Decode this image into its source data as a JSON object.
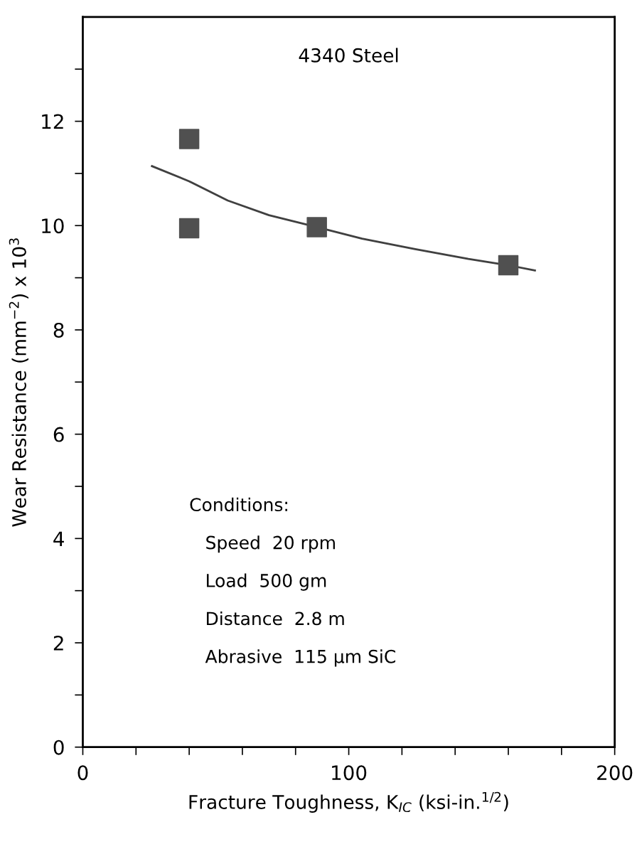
{
  "chart_data": {
    "type": "scatter",
    "title": "4340 Steel",
    "xlabel": "Fracture Toughness, K$_{IC}$ (ksi-in.$^{1/2}$)",
    "ylabel": "Wear Resistance (mm$^{−2}$) x 10$^{3}$",
    "series": [
      {
        "type": "scatter",
        "color": "#505050",
        "marker": "square",
        "x": [
          40,
          40,
          88,
          160
        ],
        "values": [
          11.66,
          9.95,
          9.97,
          9.24
        ]
      },
      {
        "type": "line",
        "color": "#404040",
        "marker": "none",
        "line_style": "solid",
        "x": [
          26,
          40,
          54.5,
          70,
          88,
          105,
          125,
          145,
          160,
          170
        ],
        "values": [
          11.14,
          10.85,
          10.48,
          10.2,
          9.97,
          9.75,
          9.55,
          9.36,
          9.24,
          9.14
        ]
      }
    ],
    "xlim": [
      0,
      200
    ],
    "xticks": [
      0,
      {
        "value": 20,
        "label": null
      },
      {
        "value": 40,
        "label": null
      },
      {
        "value": 60,
        "label": null
      },
      {
        "value": 80,
        "label": null
      },
      100,
      {
        "value": 120,
        "label": null
      },
      {
        "value": 140,
        "label": null
      },
      {
        "value": 160,
        "label": null
      },
      {
        "value": 180,
        "label": null
      },
      200
    ],
    "ylim": [
      0,
      14
    ],
    "yticks": [
      0,
      {
        "value": 1,
        "label": null
      },
      2,
      {
        "value": 3,
        "label": null
      },
      4,
      {
        "value": 5,
        "label": null
      },
      6,
      {
        "value": 7,
        "label": null
      },
      8,
      {
        "value": 9,
        "label": null
      },
      10,
      {
        "value": 11,
        "label": null
      },
      12,
      {
        "value": 13,
        "label": null
      }
    ],
    "annotations": [
      "Conditions:",
      "Speed  20 rpm",
      "Load  500 gm",
      "Distance  2.8 m",
      "Abrasive  115 μm SiC"
    ],
    "grid": false,
    "legend": false
  }
}
